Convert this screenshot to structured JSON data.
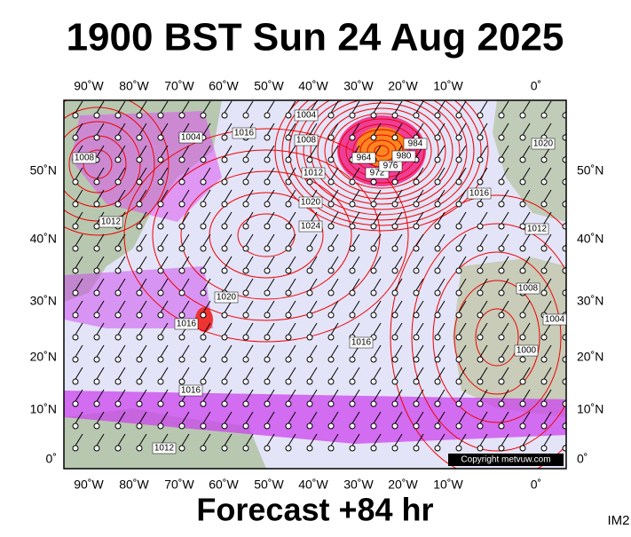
{
  "header": {
    "title": "1900 BST Sun 24 Aug 2025"
  },
  "map": {
    "lon_labels": [
      "90˚W",
      "80˚W",
      "70˚W",
      "60˚W",
      "50˚W",
      "40˚W",
      "30˚W",
      "20˚W",
      "10˚W",
      "0˚"
    ],
    "lat_labels": [
      "50˚N",
      "40˚N",
      "30˚N",
      "20˚N",
      "10˚N",
      "0˚"
    ],
    "isobar_labels": [
      "1008",
      "1004",
      "1016",
      "1004",
      "1008",
      "1012",
      "1020",
      "1024",
      "964",
      "972",
      "976",
      "980",
      "984",
      "1016",
      "1012",
      "1020",
      "1008",
      "1004",
      "1000",
      "1016",
      "1020",
      "1016",
      "1012",
      "1016",
      "1012"
    ],
    "copyright": "Copyright metvuw.com"
  },
  "footer": {
    "forecast": "Forecast +84 hr",
    "code": "IM2"
  }
}
